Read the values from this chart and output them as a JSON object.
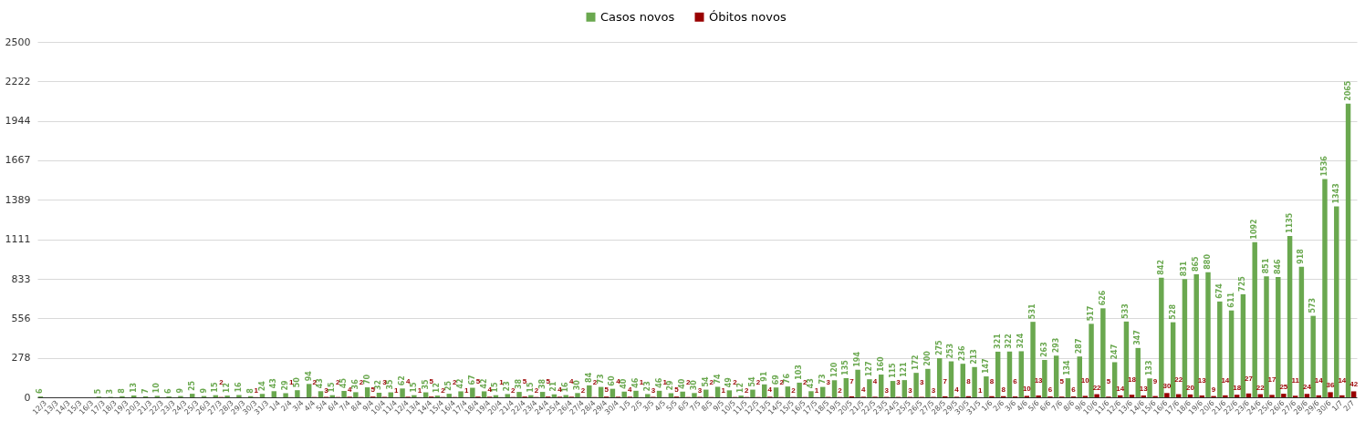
{
  "chart_data": {
    "type": "bar",
    "categories": [
      "12/3",
      "13/3",
      "14/3",
      "15/3",
      "16/3",
      "17/3",
      "18/3",
      "19/3",
      "20/3",
      "21/3",
      "22/3",
      "23/3",
      "24/3",
      "25/3",
      "26/3",
      "27/3",
      "28/3",
      "29/3",
      "30/3",
      "31/3",
      "1/4",
      "2/4",
      "3/4",
      "4/4",
      "5/4",
      "6/4",
      "7/4",
      "8/4",
      "9/4",
      "10/4",
      "11/4",
      "12/4",
      "13/4",
      "14/4",
      "15/4",
      "16/4",
      "17/4",
      "18/4",
      "19/4",
      "20/4",
      "21/4",
      "22/4",
      "23/4",
      "24/4",
      "25/4",
      "26/4",
      "27/4",
      "28/4",
      "29/4",
      "30/4",
      "1/5",
      "2/5",
      "3/5",
      "4/5",
      "5/5",
      "6/5",
      "7/5",
      "8/5",
      "9/5",
      "10/5",
      "11/5",
      "12/5",
      "13/5",
      "14/5",
      "15/5",
      "16/5",
      "17/5",
      "18/5",
      "19/5",
      "20/5",
      "21/5",
      "22/5",
      "23/5",
      "24/5",
      "25/5",
      "26/5",
      "27/5",
      "28/5",
      "29/5",
      "30/5",
      "31/5",
      "1/6",
      "2/6",
      "3/6",
      "4/6",
      "5/6",
      "6/6",
      "7/6",
      "8/6",
      "9/6",
      "10/6",
      "11/6",
      "12/6",
      "13/6",
      "14/6",
      "15/6",
      "16/6",
      "17/6",
      "18/6",
      "19/6",
      "20/6",
      "21/6",
      "22/6",
      "23/6",
      "24/6",
      "25/6",
      "26/6",
      "27/6",
      "28/6",
      "29/6",
      "30/6",
      "1/7",
      "2/7"
    ],
    "series": [
      {
        "name": "Casos novos",
        "color": "#6aa84f",
        "values": [
          6,
          null,
          null,
          null,
          null,
          5,
          3,
          8,
          13,
          7,
          10,
          6,
          9,
          25,
          9,
          15,
          12,
          16,
          8,
          24,
          43,
          29,
          50,
          94,
          43,
          15,
          45,
          36,
          70,
          32,
          35,
          62,
          15,
          35,
          12,
          25,
          42,
          67,
          42,
          15,
          23,
          38,
          15,
          38,
          21,
          16,
          30,
          84,
          73,
          60,
          40,
          46,
          23,
          46,
          29,
          40,
          30,
          54,
          74,
          49,
          12,
          54,
          91,
          69,
          76,
          103,
          43,
          73,
          120,
          135,
          194,
          127,
          160,
          115,
          121,
          172,
          200,
          275,
          253,
          236,
          213,
          147,
          321,
          322,
          324,
          531,
          263,
          293,
          134,
          287,
          517,
          626,
          247,
          533,
          347,
          133,
          842,
          528,
          831,
          865,
          880,
          674,
          611,
          725,
          1092,
          851,
          846,
          1135,
          918,
          573,
          1536,
          1343,
          2065
        ]
      },
      {
        "name": "Óbitos novos",
        "color": "#990000",
        "values": [
          null,
          null,
          null,
          null,
          null,
          null,
          null,
          null,
          null,
          null,
          null,
          null,
          null,
          null,
          null,
          2,
          null,
          null,
          1,
          null,
          null,
          1,
          null,
          2,
          3,
          2,
          4,
          2,
          5,
          3,
          1,
          4,
          1,
          5,
          2,
          2,
          1,
          5,
          4,
          1,
          2,
          5,
          2,
          5,
          4,
          4,
          2,
          2,
          5,
          4,
          4,
          1,
          3,
          1,
          5,
          2,
          3,
          2,
          1,
          2,
          2,
          2,
          4,
          2,
          2,
          2,
          1,
          3,
          2,
          7,
          4,
          4,
          3,
          3,
          3,
          3,
          3,
          7,
          4,
          8,
          1,
          8,
          8,
          6,
          10,
          13,
          6,
          5,
          6,
          10,
          22,
          5,
          14,
          18,
          13,
          9,
          30,
          22,
          20,
          13,
          9,
          14,
          18,
          27,
          22,
          17,
          25,
          11,
          24,
          14,
          36,
          14,
          42
        ]
      }
    ],
    "ylim": [
      0,
      2500
    ],
    "yticks": [
      0,
      {
        "value": 277.78,
        "label": "278"
      },
      {
        "value": 555.56,
        "label": "556"
      },
      {
        "value": 833.33,
        "label": "833"
      },
      {
        "value": 1111.11,
        "label": "1111"
      },
      {
        "value": 1388.89,
        "label": "1389"
      },
      {
        "value": 1666.67,
        "label": "1667"
      },
      {
        "value": 1944.44,
        "label": "1944"
      },
      {
        "value": 2222.22,
        "label": "2222"
      },
      2500
    ],
    "grid": "y",
    "legend": "top",
    "data_labels": true
  }
}
